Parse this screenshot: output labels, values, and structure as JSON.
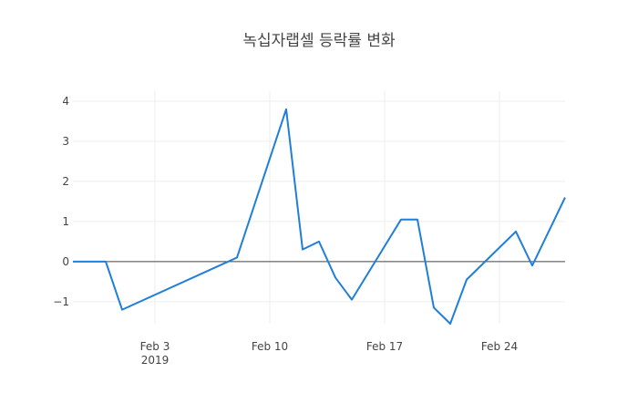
{
  "chart_data": {
    "type": "line",
    "title": "녹십자랩셀 등락률 변화",
    "xlabel": "",
    "ylabel": "",
    "x_ticks": [
      {
        "date": "2019-02-03",
        "label": "Feb 3",
        "sublabel": "2019"
      },
      {
        "date": "2019-02-10",
        "label": "Feb 10",
        "sublabel": ""
      },
      {
        "date": "2019-02-17",
        "label": "Feb 17",
        "sublabel": ""
      },
      {
        "date": "2019-02-24",
        "label": "Feb 24",
        "sublabel": ""
      }
    ],
    "y_ticks": [
      {
        "value": -1,
        "label": "−1"
      },
      {
        "value": 0,
        "label": "0"
      },
      {
        "value": 1,
        "label": "1"
      },
      {
        "value": 2,
        "label": "2"
      },
      {
        "value": 3,
        "label": "3"
      },
      {
        "value": 4,
        "label": "4"
      }
    ],
    "xlim": [
      "2019-01-29",
      "2019-02-28"
    ],
    "ylim": [
      -1.55,
      4.25
    ],
    "grid": true,
    "zero_line": true,
    "line_color": "#1f7fd8",
    "series": [
      {
        "x": [
          "2019-01-29",
          "2019-01-30",
          "2019-01-31",
          "2019-02-01",
          "2019-02-08",
          "2019-02-11",
          "2019-02-12",
          "2019-02-13",
          "2019-02-14",
          "2019-02-15",
          "2019-02-18",
          "2019-02-19",
          "2019-02-20",
          "2019-02-21",
          "2019-02-22",
          "2019-02-25",
          "2019-02-26",
          "2019-02-28"
        ],
        "y": [
          0,
          0,
          0,
          -1.2,
          0.1,
          3.8,
          0.3,
          0.5,
          -0.4,
          -0.95,
          1.05,
          1.05,
          -1.15,
          -1.55,
          -0.45,
          0.75,
          -0.1,
          1.6
        ]
      }
    ]
  }
}
